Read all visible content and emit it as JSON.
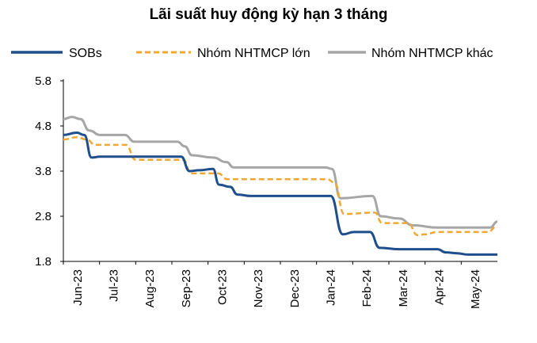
{
  "chart_data": {
    "type": "line",
    "title": "Lãi suất huy động kỳ hạn 3 tháng",
    "xlabel": "",
    "ylabel": "",
    "ylim": [
      1.8,
      5.8
    ],
    "yticks": [
      "5.8",
      "4.8",
      "3.8",
      "2.8",
      "1.8"
    ],
    "grid": false,
    "legend_position": "top",
    "x_range": [
      "2023-06-01",
      "2024-05-20"
    ],
    "xtick_labels": [
      "Jun-23",
      "Jul-23",
      "Aug-23",
      "Sep-23",
      "Oct-23",
      "Nov-23",
      "Dec-23",
      "Jan-24",
      "Feb-24",
      "Mar-24",
      "Apr-24",
      "May-24"
    ],
    "series": [
      {
        "name": "SOBs",
        "color": "#1F4E8C",
        "style": "solid",
        "points": [
          [
            "2023-06-01",
            4.6
          ],
          [
            "2023-06-12",
            4.65
          ],
          [
            "2023-06-18",
            4.6
          ],
          [
            "2023-06-24",
            4.1
          ],
          [
            "2023-07-01",
            4.12
          ],
          [
            "2023-09-05",
            4.12
          ],
          [
            "2023-09-12",
            3.8
          ],
          [
            "2023-09-20",
            3.82
          ],
          [
            "2023-10-01",
            3.85
          ],
          [
            "2023-10-06",
            3.5
          ],
          [
            "2023-10-15",
            3.45
          ],
          [
            "2023-10-21",
            3.28
          ],
          [
            "2023-11-01",
            3.25
          ],
          [
            "2024-01-05",
            3.25
          ],
          [
            "2024-01-15",
            2.4
          ],
          [
            "2024-01-24",
            2.45
          ],
          [
            "2024-02-06",
            2.45
          ],
          [
            "2024-02-14",
            2.1
          ],
          [
            "2024-03-01",
            2.07
          ],
          [
            "2024-04-01",
            2.07
          ],
          [
            "2024-04-08",
            2.0
          ],
          [
            "2024-04-17",
            1.98
          ],
          [
            "2024-04-26",
            1.95
          ],
          [
            "2024-05-20",
            1.95
          ]
        ]
      },
      {
        "name": "Nhóm NHTMCP lớn",
        "color": "#F0A830",
        "style": "dashed",
        "points": [
          [
            "2023-06-01",
            4.5
          ],
          [
            "2023-06-12",
            4.55
          ],
          [
            "2023-06-20",
            4.5
          ],
          [
            "2023-06-27",
            4.38
          ],
          [
            "2023-07-22",
            4.38
          ],
          [
            "2023-07-30",
            4.05
          ],
          [
            "2023-09-07",
            4.05
          ],
          [
            "2023-09-13",
            3.75
          ],
          [
            "2023-10-05",
            3.75
          ],
          [
            "2023-10-13",
            3.62
          ],
          [
            "2024-01-02",
            3.62
          ],
          [
            "2024-01-08",
            3.55
          ],
          [
            "2024-01-16",
            2.85
          ],
          [
            "2024-02-10",
            2.88
          ],
          [
            "2024-02-16",
            2.65
          ],
          [
            "2024-03-08",
            2.65
          ],
          [
            "2024-03-16",
            2.38
          ],
          [
            "2024-03-22",
            2.4
          ],
          [
            "2024-04-01",
            2.45
          ],
          [
            "2024-05-12",
            2.45
          ],
          [
            "2024-05-20",
            2.58
          ]
        ]
      },
      {
        "name": "Nhóm NHTMCP khác",
        "color": "#A6A6A6",
        "style": "solid",
        "points": [
          [
            "2023-06-01",
            4.95
          ],
          [
            "2023-06-08",
            5.0
          ],
          [
            "2023-06-15",
            4.95
          ],
          [
            "2023-06-22",
            4.7
          ],
          [
            "2023-07-01",
            4.6
          ],
          [
            "2023-07-21",
            4.6
          ],
          [
            "2023-07-29",
            4.45
          ],
          [
            "2023-09-02",
            4.45
          ],
          [
            "2023-09-08",
            4.35
          ],
          [
            "2023-09-14",
            4.15
          ],
          [
            "2023-10-01",
            4.1
          ],
          [
            "2023-10-12",
            4.0
          ],
          [
            "2023-10-18",
            3.88
          ],
          [
            "2024-01-01",
            3.88
          ],
          [
            "2024-01-06",
            3.85
          ],
          [
            "2024-01-13",
            3.2
          ],
          [
            "2024-02-08",
            3.25
          ],
          [
            "2024-02-15",
            2.8
          ],
          [
            "2024-03-01",
            2.75
          ],
          [
            "2024-03-12",
            2.6
          ],
          [
            "2024-04-01",
            2.55
          ],
          [
            "2024-05-14",
            2.55
          ],
          [
            "2024-05-20",
            2.68
          ]
        ]
      }
    ]
  }
}
